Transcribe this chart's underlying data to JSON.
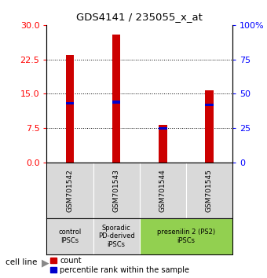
{
  "title": "GDS4141 / 235055_x_at",
  "samples": [
    "GSM701542",
    "GSM701543",
    "GSM701544",
    "GSM701545"
  ],
  "count_values": [
    23.5,
    28.0,
    8.2,
    15.8
  ],
  "percentile_values": [
    43,
    44,
    25,
    42
  ],
  "ylim_left": [
    0,
    30
  ],
  "ylim_right": [
    0,
    100
  ],
  "yticks_left": [
    0,
    7.5,
    15,
    22.5,
    30
  ],
  "yticks_right": [
    0,
    25,
    50,
    75,
    100
  ],
  "bar_color": "#cc0000",
  "percentile_color": "#0000cc",
  "bar_width": 0.18,
  "groups": [
    {
      "label": "control\nIPSCs",
      "color": "#d9d9d9",
      "span": [
        0,
        1
      ]
    },
    {
      "label": "Sporadic\nPD-derived\niPSCs",
      "color": "#d9d9d9",
      "span": [
        1,
        2
      ]
    },
    {
      "label": "presenilin 2 (PS2)\niPSCs",
      "color": "#92d050",
      "span": [
        2,
        4
      ]
    }
  ],
  "cell_line_label": "cell line",
  "legend_count_label": "count",
  "legend_percentile_label": "percentile rank within the sample",
  "background_color": "#ffffff",
  "grid_lines": [
    7.5,
    15.0,
    22.5
  ]
}
